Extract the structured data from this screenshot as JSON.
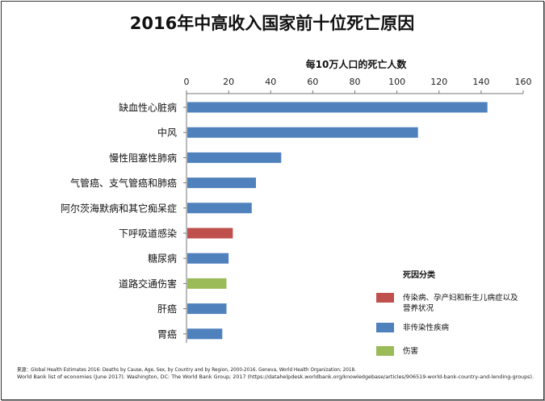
{
  "chart_data": {
    "type": "bar",
    "orientation": "horizontal",
    "title": "2016年中高收入国家前十位死亡原因",
    "xlabel": "每10万人口的死亡人数",
    "xlim": [
      0,
      160
    ],
    "xticks": [
      "0",
      "20",
      "40",
      "60",
      "80",
      "100",
      "120",
      "140",
      "160"
    ],
    "grid": false,
    "axis_position": "top",
    "categories": [
      "缺血性心脏病",
      "中风",
      "慢性阻塞性肺病",
      "气管癌、支气管癌和肺癌",
      "阿尔茨海默病和其它痴呆症",
      "下呼吸道感染",
      "糖尿病",
      "道路交通伤害",
      "肝癌",
      "胃癌"
    ],
    "values": [
      143,
      110,
      45,
      33,
      31,
      22,
      20,
      19,
      19,
      17
    ],
    "value_groups": [
      1,
      1,
      1,
      1,
      1,
      0,
      1,
      2,
      1,
      1
    ],
    "legend": {
      "title": "死因分类",
      "placement": "bottom-right",
      "entries": [
        {
          "label_lines": [
            "传染病、孕产妇和新生儿病症以及",
            "营养状况"
          ],
          "color": "#c0504d"
        },
        {
          "label_lines": [
            "非传染性疾病"
          ],
          "color": "#4f81bd"
        },
        {
          "label_lines": [
            "伤害"
          ],
          "color": "#9bbb59"
        }
      ]
    }
  },
  "source_lines": [
    "来源：Global Health Estimates 2016: Deaths by Cause, Age, Sex, by Country and by Region, 2000-2016. Geneva, World Health Organization; 2018.",
    "World Bank list of economies (June 2017). Washington, DC: The World Bank Group; 2017 (https://datahelpdesk.worldbank.org/knowledgebase/articles/906519-world-bank-country-and-lending-groups)."
  ]
}
